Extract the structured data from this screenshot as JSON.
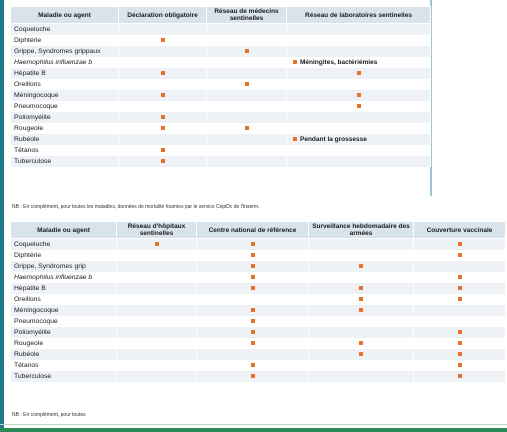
{
  "colors": {
    "marker": "#e8702a",
    "header_bg": "#d9e3ec",
    "stripe": "#eef2f6"
  },
  "table1": {
    "headers": [
      "Maladie ou agent",
      "Déclaration obligatoire",
      "Réseau de médecins sentinelles",
      "Réseau de laboratoires sentinelles"
    ],
    "rows": [
      {
        "label": "Coqueluche",
        "italic": false,
        "marks": [
          false,
          false,
          false
        ],
        "notes": [
          "",
          "",
          ""
        ]
      },
      {
        "label": "Diphtérie",
        "italic": false,
        "marks": [
          true,
          false,
          false
        ],
        "notes": [
          "",
          "",
          ""
        ]
      },
      {
        "label": "Grippe, Syndromes grippaux",
        "italic": false,
        "marks": [
          false,
          true,
          false
        ],
        "notes": [
          "",
          "",
          ""
        ]
      },
      {
        "label": "Haemophilus influenzae b",
        "italic": true,
        "marks": [
          false,
          false,
          true
        ],
        "notes": [
          "",
          "",
          "Méningites, bactériémies"
        ]
      },
      {
        "label": "Hépatite B",
        "italic": false,
        "marks": [
          true,
          false,
          true
        ],
        "notes": [
          "",
          "",
          ""
        ]
      },
      {
        "label": "Oreillons",
        "italic": false,
        "marks": [
          false,
          true,
          false
        ],
        "notes": [
          "",
          "",
          ""
        ]
      },
      {
        "label": "Méningocoque",
        "italic": false,
        "marks": [
          true,
          false,
          true
        ],
        "notes": [
          "",
          "",
          ""
        ]
      },
      {
        "label": "Pneumocoque",
        "italic": false,
        "marks": [
          false,
          false,
          true
        ],
        "notes": [
          "",
          "",
          ""
        ]
      },
      {
        "label": "Poliomyélite",
        "italic": false,
        "marks": [
          true,
          false,
          false
        ],
        "notes": [
          "",
          "",
          ""
        ]
      },
      {
        "label": "Rougeole",
        "italic": false,
        "marks": [
          true,
          true,
          false
        ],
        "notes": [
          "",
          "",
          ""
        ]
      },
      {
        "label": "Rubéole",
        "italic": false,
        "marks": [
          false,
          false,
          true
        ],
        "notes": [
          "",
          "",
          "Pendant la grossesse"
        ]
      },
      {
        "label": "Tétanos",
        "italic": false,
        "marks": [
          true,
          false,
          false
        ],
        "notes": [
          "",
          "",
          ""
        ]
      },
      {
        "label": "Tuberculose",
        "italic": false,
        "marks": [
          true,
          false,
          false
        ],
        "notes": [
          "",
          "",
          ""
        ]
      }
    ],
    "footnote": "NB : En complément, pour toutes les maladies, données de mortalité fournies par le service CépiDc de l'Inserm."
  },
  "table2": {
    "headers": [
      "Maladie ou agent",
      "Réseau d'hôpitaux sentinelles",
      "Centre national de référence",
      "Surveillance hebdomadaire des armées",
      "Couverture vaccinale"
    ],
    "rows": [
      {
        "label": "Coqueluche",
        "italic": false,
        "marks": [
          true,
          true,
          false,
          true
        ]
      },
      {
        "label": "Diphtérie",
        "italic": false,
        "marks": [
          false,
          true,
          false,
          true
        ]
      },
      {
        "label": "Grippe, Syndromes grip",
        "italic": false,
        "marks": [
          false,
          true,
          true,
          false
        ]
      },
      {
        "label": "Haemophilus influenzae b",
        "italic": true,
        "marks": [
          false,
          true,
          false,
          true
        ]
      },
      {
        "label": "Hépatite B",
        "italic": false,
        "marks": [
          false,
          true,
          true,
          true
        ]
      },
      {
        "label": "Oreillons",
        "italic": false,
        "marks": [
          false,
          false,
          true,
          true
        ]
      },
      {
        "label": "Méningocoque",
        "italic": false,
        "marks": [
          false,
          true,
          true,
          false
        ]
      },
      {
        "label": "Pneumocoque",
        "italic": false,
        "marks": [
          false,
          true,
          false,
          false
        ]
      },
      {
        "label": "Poliomyélite",
        "italic": false,
        "marks": [
          false,
          true,
          false,
          true
        ]
      },
      {
        "label": "Rougeole",
        "italic": false,
        "marks": [
          false,
          true,
          true,
          true
        ]
      },
      {
        "label": "Rubéole",
        "italic": false,
        "marks": [
          false,
          false,
          true,
          true
        ]
      },
      {
        "label": "Tétanos",
        "italic": false,
        "marks": [
          false,
          true,
          false,
          true
        ]
      },
      {
        "label": "Tuberculose",
        "italic": false,
        "marks": [
          false,
          true,
          false,
          true
        ]
      }
    ],
    "footnote": "NB : En complément, pour toutes"
  }
}
